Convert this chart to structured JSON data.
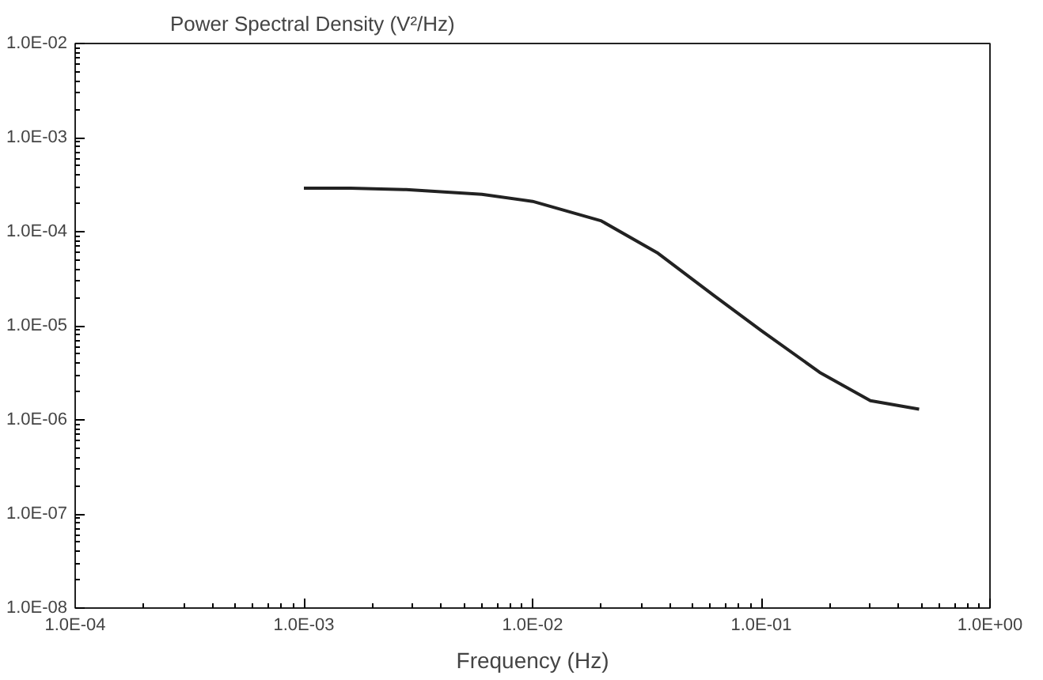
{
  "chart_data": {
    "type": "line",
    "title": "Power Spectral Density (V²/Hz)",
    "xlabel": "Frequency (Hz)",
    "log": "xy",
    "grid": false,
    "marker": "none",
    "line_style": "solid",
    "x": [
      0.001,
      0.0016,
      0.0028,
      0.006,
      0.01,
      0.02,
      0.035,
      0.062,
      0.1,
      0.18,
      0.3,
      0.49
    ],
    "series": [
      {
        "color": "#222222",
        "values": [
          0.00029,
          0.00029,
          0.00028,
          0.00025,
          0.00021,
          0.00013,
          6e-05,
          2.1e-05,
          8.9e-06,
          3.2e-06,
          1.6e-06,
          1.3e-06
        ]
      }
    ],
    "xlim": [
      0.0001,
      1
    ],
    "ylim": [
      1e-08,
      0.01
    ],
    "xticks": [
      {
        "value": 0.0001,
        "label": "1.0E-04"
      },
      {
        "value": 0.001,
        "label": "1.0E-03"
      },
      {
        "value": 0.01,
        "label": "1.0E-02"
      },
      {
        "value": 0.1,
        "label": "1.0E-01"
      },
      {
        "value": 1,
        "label": "1.0E+00"
      }
    ],
    "yticks": [
      {
        "value": 1e-08,
        "label": "1.0E-08"
      },
      {
        "value": 1e-07,
        "label": "1.0E-07"
      },
      {
        "value": 1e-06,
        "label": "1.0E-06"
      },
      {
        "value": 1e-05,
        "label": "1.0E-05"
      },
      {
        "value": 0.0001,
        "label": "1.0E-04"
      },
      {
        "value": 0.001,
        "label": "1.0E-03"
      },
      {
        "value": 0.01,
        "label": "1.0E-02"
      }
    ]
  }
}
